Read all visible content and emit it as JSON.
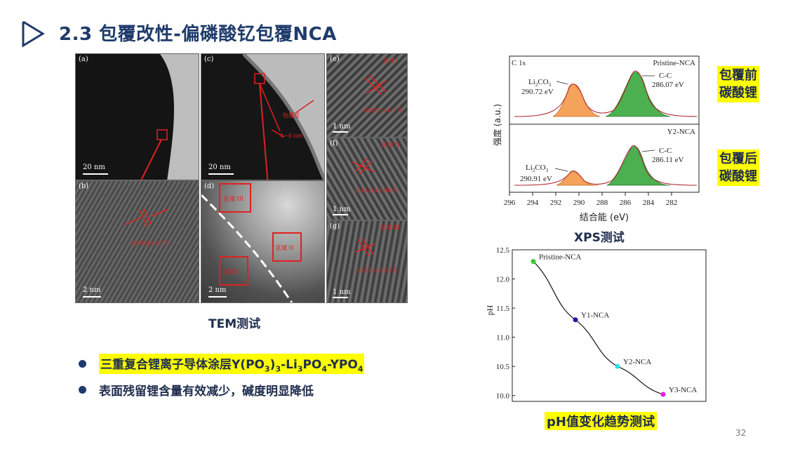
{
  "slide": {
    "title": "2.3 包覆改性-偏磷酸钇包覆NCA",
    "page_number": "32",
    "title_color": "#1f3b6b",
    "highlight_color": "#ffff00"
  },
  "tem": {
    "caption": "TEM测试",
    "panels": {
      "a": {
        "letter": "(a)",
        "scale": "20 nm"
      },
      "b": {
        "letter": "(b)",
        "scale": "2 nm",
        "label": "d(003)=4.7 Å"
      },
      "c": {
        "letter": "(c)",
        "scale": "20 nm",
        "label_region": "包覆层",
        "label_thickness": "4~8 nm"
      },
      "d": {
        "letter": "(d)",
        "scale": "2 nm",
        "region1": "区域 I",
        "region2": "区域 II",
        "region3": "区域 III"
      },
      "e": {
        "letter": "(e)",
        "scale": "1 nm",
        "tag": "区域 I",
        "label": "d(003)=4.7 Å"
      },
      "f": {
        "letter": "(f)",
        "scale": "1 nm",
        "tag": "区域 II",
        "label": "d(112)=2.98 Å"
      },
      "g": {
        "letter": "(g)",
        "scale": "1 nm",
        "tag": "区域 III",
        "label": "d(211)=3.23 Å"
      }
    }
  },
  "bullets": [
    {
      "pre": "三重复合锂离子导体涂层Y(PO",
      "s1": "3",
      "mid1": ")",
      "s2": "3",
      "mid2": "-Li",
      "s3": "3",
      "mid3": "PO",
      "s4": "4",
      "mid4": "-YPO",
      "s5": "4"
    },
    {
      "text": "表面残留锂含量有效减少，碱度明显降低"
    }
  ],
  "xps": {
    "caption": "XPS测试",
    "element_label": "C 1s",
    "ylabel": "强度 (a.u.)",
    "xlabel": "结合能 (eV)",
    "xticks": [
      "296",
      "294",
      "292",
      "290",
      "288",
      "286",
      "284",
      "282"
    ],
    "top": {
      "sample": "Pristine-NCA",
      "li2co3_name": "Li2CO3",
      "li2co3_ev": "290.72 eV",
      "cc_name": "C-C",
      "cc_ev": "286.07 eV"
    },
    "bottom": {
      "sample": "Y2-NCA",
      "li2co3_name": "Li2CO3",
      "li2co3_ev": "290.91 eV",
      "cc_name": "C-C",
      "cc_ev": "286.11 eV"
    },
    "tag_before_line1": "包覆前",
    "tag_before_line2": "碳酸锂",
    "tag_after_line1": "包覆后",
    "tag_after_line2": "碳酸锂",
    "li2co3_color": "#f5a25a",
    "cc_color": "#4caf50"
  },
  "ph_chart": {
    "caption": "pH值变化趋势测试"
  },
  "chart_data": [
    {
      "type": "line",
      "title": "",
      "xlabel": "",
      "ylabel": "pH",
      "categories": [
        "Pristine-NCA",
        "Y1-NCA",
        "Y2-NCA",
        "Y3-NCA"
      ],
      "values": [
        12.3,
        11.3,
        10.5,
        10.02
      ],
      "point_colors": [
        "#33cc33",
        "#1a1aa8",
        "#33dddd",
        "#dd22dd"
      ],
      "yticks": [
        "10.0",
        "10.5",
        "11.0",
        "11.5",
        "12.0",
        "12.5"
      ],
      "ylim": [
        9.9,
        12.5
      ],
      "grid": false
    },
    {
      "type": "line",
      "xlabel": "结合能 (eV)",
      "ylabel": "强度 (a.u.)",
      "xlim": [
        296,
        281
      ],
      "series": [
        {
          "name": "Pristine-NCA",
          "peaks": [
            {
              "label": "Li2CO3",
              "center_ev": 290.72
            },
            {
              "label": "C-C",
              "center_ev": 286.07
            }
          ]
        },
        {
          "name": "Y2-NCA",
          "peaks": [
            {
              "label": "Li2CO3",
              "center_ev": 290.91
            },
            {
              "label": "C-C",
              "center_ev": 286.11
            }
          ]
        }
      ]
    }
  ]
}
